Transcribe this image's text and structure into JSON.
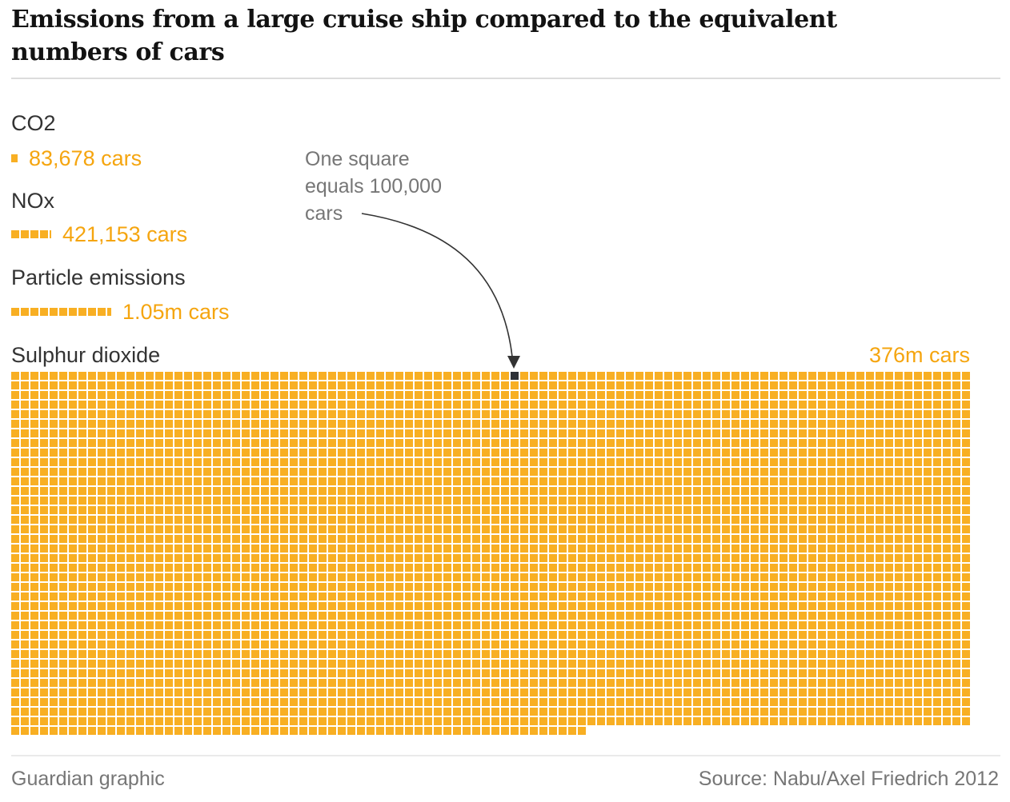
{
  "header": {
    "title_line1": "Emissions from a large cruise ship compared to the equivalent",
    "title_line2": "numbers of cars"
  },
  "annotation": {
    "text": "One square equals 100,000 cars"
  },
  "footer": {
    "credit": "Guardian graphic",
    "source": "Source: Nabu/Axel Friedrich 2012"
  },
  "colors": {
    "title_text": "#121212",
    "label_text": "#333333",
    "value_text": "#f5a50f",
    "square": "#f8af23",
    "dark_square": "#2e3238",
    "annotation_text": "#767676",
    "footer_text": "#767676",
    "arrow": "#333333",
    "divider_top": "#dcdcdc",
    "divider_bottom": "#eaeaea",
    "background": "#ffffff"
  },
  "chart_data": {
    "type": "waffle",
    "title": "Emissions from a large cruise ship compared to the equivalent numbers of cars",
    "square_value_cars": 100000,
    "unit_note": "One square equals 100,000 cars",
    "legend_position": "none",
    "series": [
      {
        "label": "CO2",
        "cars": 83678,
        "value_label": "83,678 cars",
        "squares": 0.84
      },
      {
        "label": "NOx",
        "cars": 421153,
        "value_label": "421,153 cars",
        "squares": 4.21
      },
      {
        "label": "Particle emissions",
        "cars": 1050000,
        "value_label": "1.05m cars",
        "squares": 10.5
      },
      {
        "label": "Sulphur dioxide",
        "cars": 376000000,
        "value_label": "376m cars",
        "squares": 3760,
        "grid": {
          "columns": 100,
          "full_rows": 37,
          "last_row_squares": 60,
          "highlight": {
            "row": 0,
            "col": 52
          }
        }
      }
    ]
  }
}
